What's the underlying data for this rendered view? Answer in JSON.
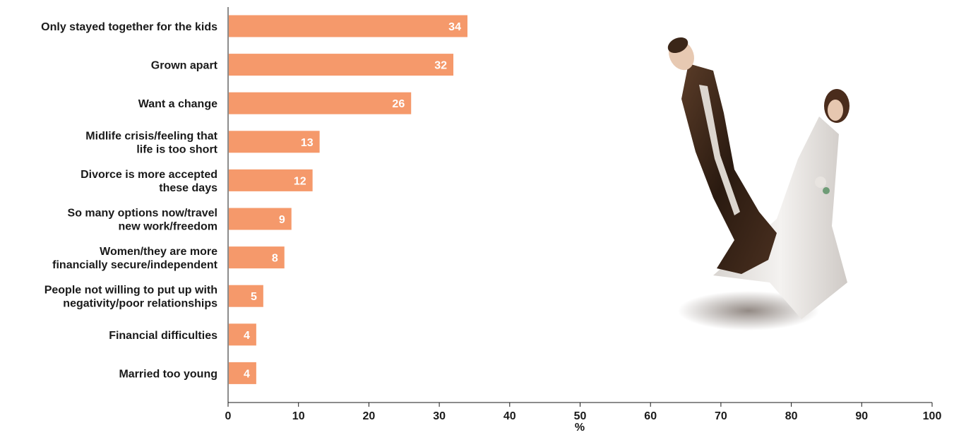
{
  "chart_data": {
    "type": "bar",
    "orientation": "horizontal",
    "categories": [
      [
        "Only stayed together for the kids"
      ],
      [
        "Grown apart"
      ],
      [
        "Want a change"
      ],
      [
        "Midlife crisis/feeling that",
        "life is too short"
      ],
      [
        "Divorce is more accepted",
        "these days"
      ],
      [
        "So many options now/travel",
        "new work/freedom"
      ],
      [
        "Women/they are more",
        "financially secure/independent"
      ],
      [
        "People not willing to put up with",
        "negativity/poor relationships"
      ],
      [
        "Financial difficulties"
      ],
      [
        "Married too young"
      ]
    ],
    "values": [
      34,
      32,
      26,
      13,
      12,
      9,
      8,
      5,
      4,
      4
    ],
    "title": "",
    "xlabel": "%",
    "ylabel": "",
    "xlim": [
      0,
      100
    ],
    "xticks": [
      0,
      10,
      20,
      30,
      40,
      50,
      60,
      70,
      80,
      90,
      100
    ],
    "grid": false,
    "data_labels": true,
    "colors": {
      "bar": "#f5996b",
      "label_text": "#ffffff",
      "axis": "#1a1a1a"
    }
  },
  "decoration": {
    "image": "cake-topper-bride-groom-photo"
  }
}
